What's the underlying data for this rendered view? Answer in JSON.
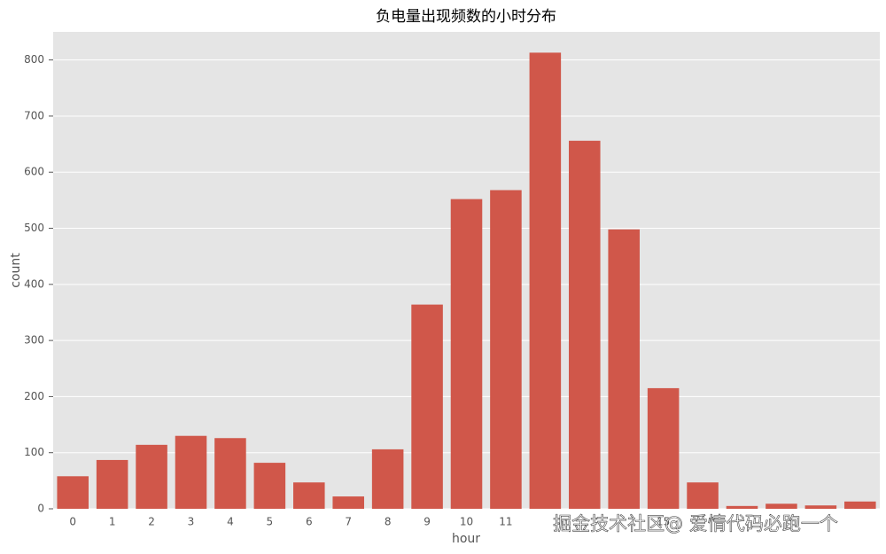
{
  "chart_data": {
    "type": "bar",
    "title": "负电量出现频数的小时分布",
    "xlabel": "hour",
    "ylabel": "count",
    "categories": [
      "0",
      "1",
      "2",
      "3",
      "4",
      "5",
      "6",
      "7",
      "8",
      "9",
      "10",
      "11",
      null,
      null,
      null,
      "15",
      null,
      null,
      null,
      null,
      null
    ],
    "values": [
      58,
      87,
      114,
      130,
      126,
      82,
      47,
      22,
      106,
      364,
      552,
      568,
      813,
      656,
      498,
      215,
      47,
      5,
      9,
      6,
      13
    ],
    "color": "#d0574a",
    "ylim": [
      0,
      850
    ],
    "yticks": [
      0,
      100,
      200,
      300,
      400,
      500,
      600,
      700,
      800
    ],
    "grid": true,
    "watermark": "掘金技术社区@ 爱情代码必跑一个"
  }
}
